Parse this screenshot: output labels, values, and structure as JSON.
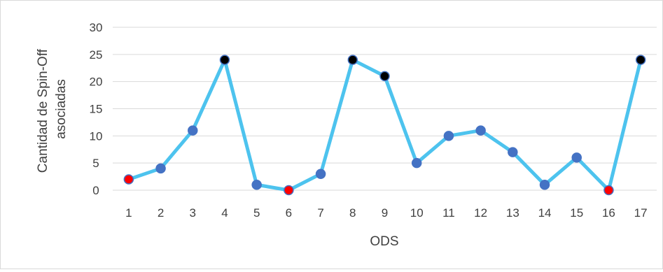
{
  "chart_data": {
    "type": "line",
    "title": "",
    "xlabel": "ODS",
    "ylabel_lines": [
      "Cantidad de Spin-Off",
      "asociadas"
    ],
    "categories": [
      "1",
      "2",
      "3",
      "4",
      "5",
      "6",
      "7",
      "8",
      "9",
      "10",
      "11",
      "12",
      "13",
      "14",
      "15",
      "16",
      "17"
    ],
    "values": [
      2,
      4,
      11,
      24,
      1,
      0,
      3,
      24,
      21,
      5,
      10,
      11,
      7,
      1,
      6,
      0,
      24
    ],
    "point_colors": [
      "#ff0000",
      "#4472c4",
      "#4472c4",
      "#000000",
      "#4472c4",
      "#ff0000",
      "#4472c4",
      "#000000",
      "#000000",
      "#4472c4",
      "#4472c4",
      "#4472c4",
      "#4472c4",
      "#4472c4",
      "#4472c4",
      "#ff0000",
      "#000000"
    ],
    "ylim": [
      0,
      30
    ],
    "yticks": [
      0,
      5,
      10,
      15,
      20,
      25,
      30
    ],
    "grid": true,
    "legend": "none",
    "colors": {
      "line": "#4dc3ee",
      "marker_default": "#4472c4",
      "marker_highlight_low": "#ff0000",
      "marker_highlight_high": "#000000",
      "gridline": "#d9d9d9",
      "text": "#404040"
    }
  }
}
